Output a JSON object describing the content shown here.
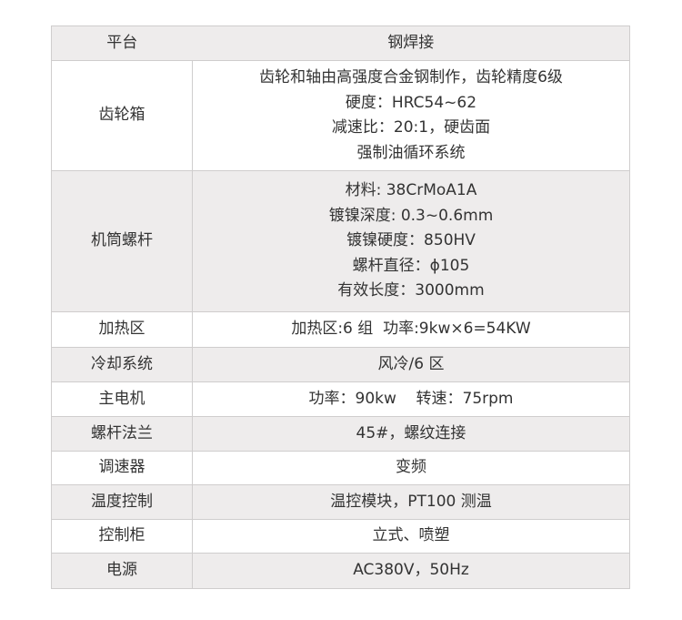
{
  "header": {
    "label": "平台",
    "value": "钢焊接"
  },
  "rows": [
    {
      "label": "齿轮箱",
      "lines": [
        "齿轮和轴由高强度合金钢制作，齿轮精度6级",
        "硬度：HRC54~62",
        "减速比：20:1，硬齿面",
        "强制油循环系统"
      ]
    },
    {
      "label": "机筒螺杆",
      "lines": [
        "材料: 38CrMoA1A",
        "镀镍深度: 0.3~0.6mm",
        "镀镍硬度：850HV",
        "螺杆直径：ϕ105",
        "有效长度：3000mm"
      ]
    },
    {
      "label": "加热区",
      "lines": [
        "加热区:6 组  功率:9kw×6=54KW"
      ]
    },
    {
      "label": "冷却系统",
      "lines": [
        "风冷/6 区"
      ]
    },
    {
      "label": "主电机",
      "lines": [
        "功率：90kw    转速：75rpm"
      ]
    },
    {
      "label": "螺杆法兰",
      "lines": [
        "45#，螺纹连接"
      ]
    },
    {
      "label": "调速器",
      "lines": [
        "变频"
      ]
    },
    {
      "label": "温度控制",
      "lines": [
        "温控模块，PT100 测温"
      ]
    },
    {
      "label": "控制柜",
      "lines": [
        "立式、喷塑"
      ]
    },
    {
      "label": "电源",
      "lines": [
        "AC380V，50Hz"
      ]
    }
  ]
}
